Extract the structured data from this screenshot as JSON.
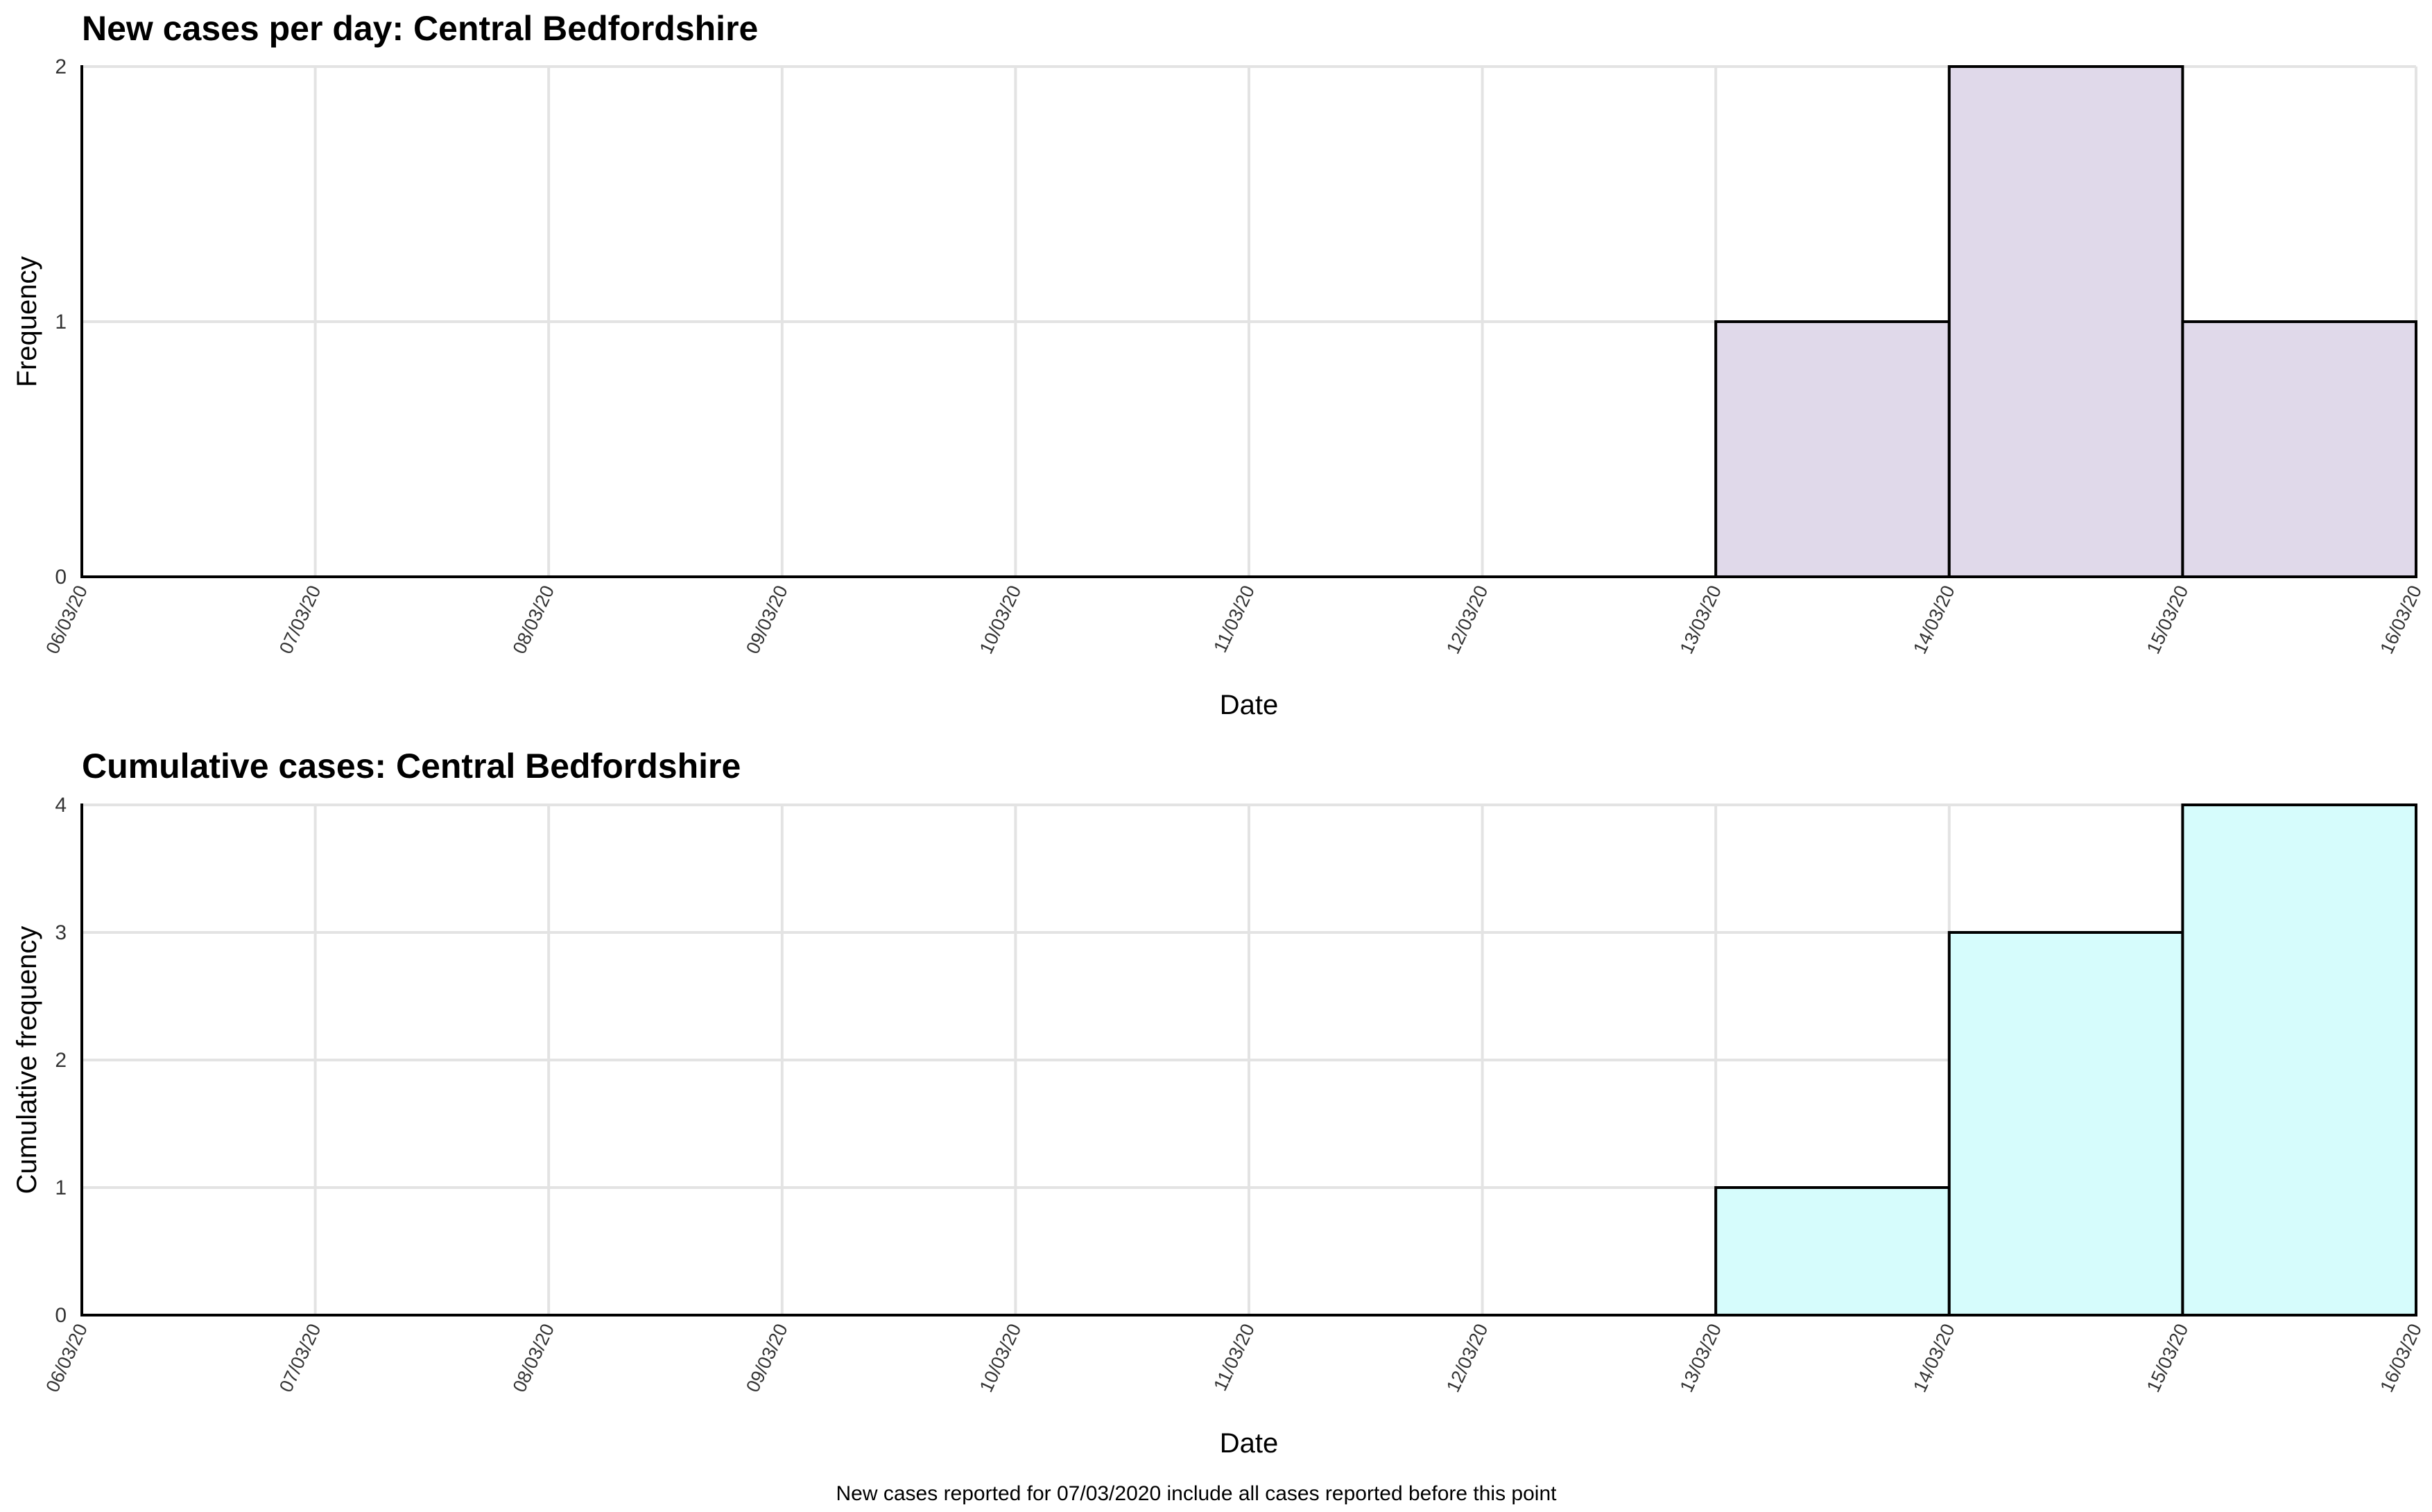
{
  "chart_data": [
    {
      "type": "bar",
      "title": "New cases per day: Central Bedfordshire",
      "xlabel": "Date",
      "ylabel": "Frequency",
      "x_ticks": [
        "06/03/20",
        "07/03/20",
        "08/03/20",
        "09/03/20",
        "10/03/20",
        "11/03/20",
        "12/03/20",
        "13/03/20",
        "14/03/20",
        "15/03/20",
        "16/03/20"
      ],
      "y_ticks": [
        0,
        1,
        2
      ],
      "ylim": [
        0,
        2
      ],
      "bins": [
        {
          "start": "13/03/20",
          "end": "14/03/20",
          "value": 1
        },
        {
          "start": "14/03/20",
          "end": "15/03/20",
          "value": 2
        },
        {
          "start": "15/03/20",
          "end": "16/03/20",
          "value": 1
        }
      ],
      "fill_color": "#e0d9ea",
      "grid": true
    },
    {
      "type": "bar",
      "title": "Cumulative cases: Central Bedfordshire",
      "xlabel": "Date",
      "ylabel": "Cumulative frequency",
      "x_ticks": [
        "06/03/20",
        "07/03/20",
        "08/03/20",
        "09/03/20",
        "10/03/20",
        "11/03/20",
        "12/03/20",
        "13/03/20",
        "14/03/20",
        "15/03/20",
        "16/03/20"
      ],
      "y_ticks": [
        0,
        1,
        2,
        3,
        4
      ],
      "ylim": [
        0,
        4
      ],
      "bins": [
        {
          "start": "13/03/20",
          "end": "14/03/20",
          "value": 1
        },
        {
          "start": "14/03/20",
          "end": "15/03/20",
          "value": 3
        },
        {
          "start": "15/03/20",
          "end": "16/03/20",
          "value": 4
        }
      ],
      "fill_color": "#d6fcfc",
      "grid": true
    }
  ],
  "caption": "New cases reported for 07/03/2020 include all cases reported before this point"
}
